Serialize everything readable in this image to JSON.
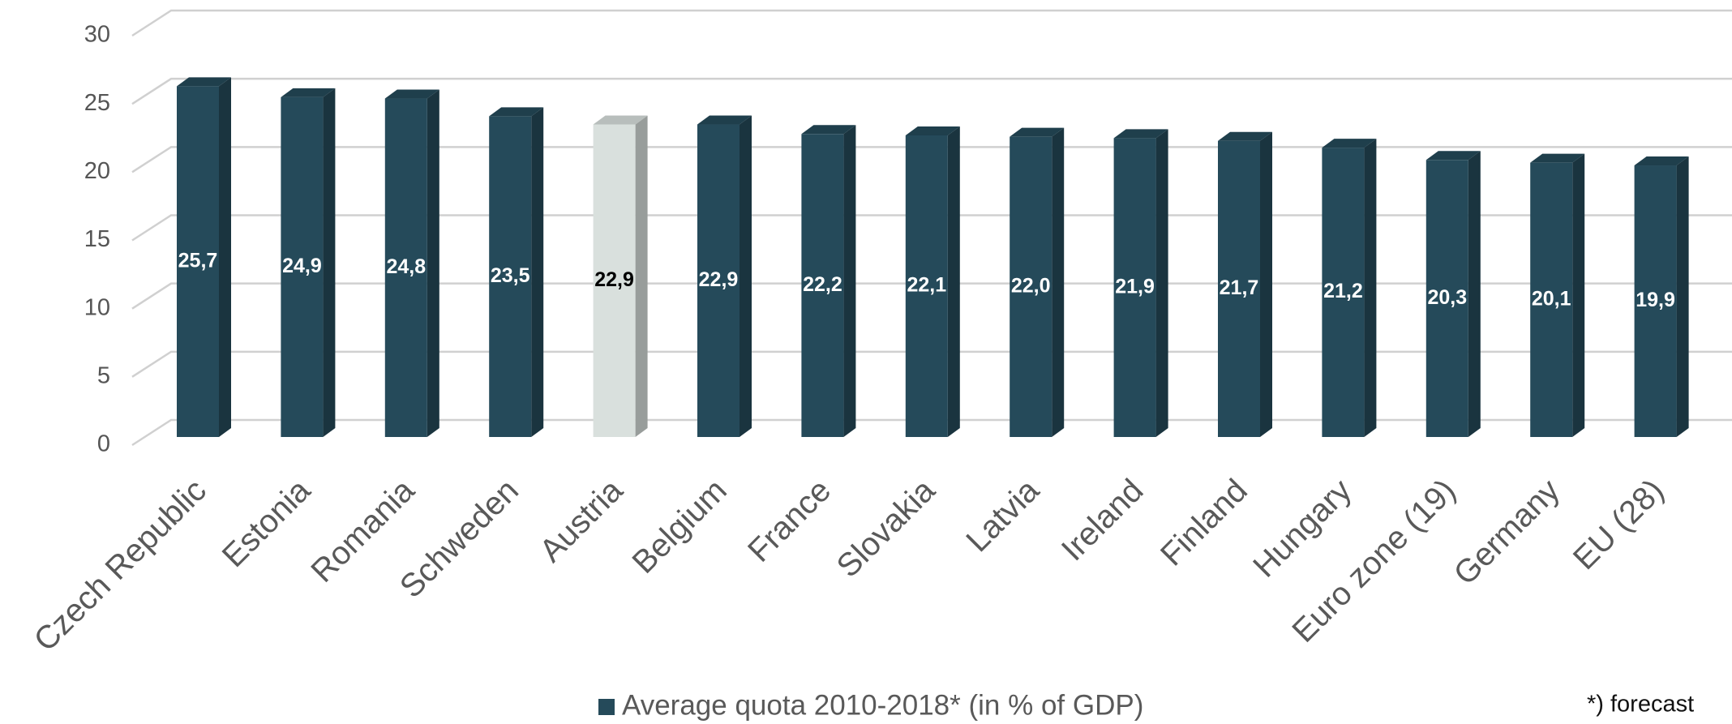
{
  "chart_data": {
    "type": "bar3d",
    "categories": [
      "Czech Republic",
      "Estonia",
      "Romania",
      "Schweden",
      "Austria",
      "Belgium",
      "France",
      "Slovakia",
      "Latvia",
      "Ireland",
      "Finland",
      "Hungary",
      "Euro zone (19)",
      "Germany",
      "EU (28)"
    ],
    "series": [
      {
        "name": "Average quota 2010-2018* (in % of GDP)",
        "color": "#254a5a",
        "values": [
          25.7,
          24.9,
          24.8,
          23.5,
          22.9,
          22.9,
          22.2,
          22.1,
          22.0,
          21.9,
          21.7,
          21.2,
          20.3,
          20.1,
          19.9
        ],
        "value_labels": [
          "25,7",
          "24,9",
          "24,8",
          "23,5",
          "22,9",
          "22,9",
          "22,2",
          "22,1",
          "22,0",
          "21,9",
          "21,7",
          "21,2",
          "20,3",
          "20,1",
          "19,9"
        ],
        "colors": [
          "#254a5a",
          "#254a5a",
          "#254a5a",
          "#254a5a",
          "#d9e0dd",
          "#254a5a",
          "#254a5a",
          "#254a5a",
          "#254a5a",
          "#254a5a",
          "#254a5a",
          "#254a5a",
          "#254a5a",
          "#254a5a",
          "#254a5a"
        ]
      }
    ],
    "ylim": [
      0,
      30
    ],
    "yticks": [
      0,
      5,
      10,
      15,
      20,
      25,
      30
    ],
    "grid": true,
    "annotation": "*) forecast"
  }
}
